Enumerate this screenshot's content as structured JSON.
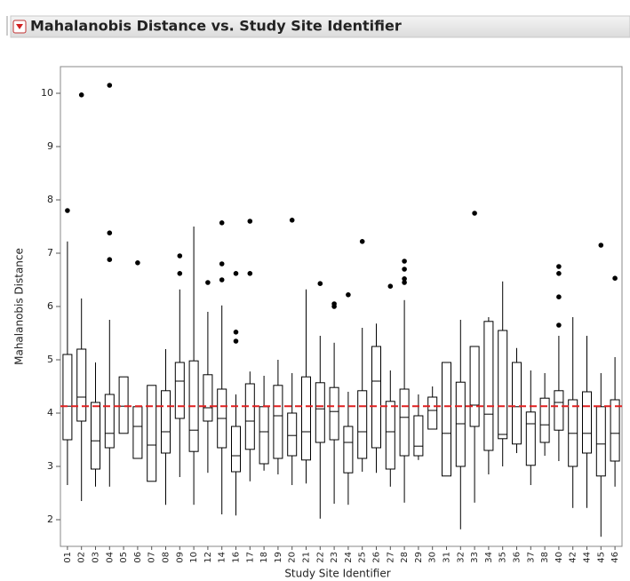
{
  "chart_data": {
    "type": "boxplot",
    "title": "Mahalanobis Distance vs. Study Site Identifier",
    "x_label": "Study Site Identifier",
    "y_label": "Mahalanobis Distance",
    "categories": [
      "01",
      "02",
      "03",
      "04",
      "05",
      "06",
      "07",
      "08",
      "09",
      "10",
      "12",
      "14",
      "16",
      "17",
      "18",
      "19",
      "20",
      "21",
      "22",
      "23",
      "24",
      "25",
      "26",
      "27",
      "28",
      "29",
      "30",
      "31",
      "32",
      "33",
      "34",
      "35",
      "36",
      "37",
      "38",
      "40",
      "42",
      "44",
      "45",
      "46"
    ],
    "min": [
      2.65,
      2.35,
      2.62,
      2.62,
      3.62,
      3.15,
      2.72,
      2.28,
      2.8,
      2.28,
      2.88,
      2.1,
      2.08,
      2.72,
      2.92,
      2.85,
      2.65,
      2.68,
      2.02,
      2.3,
      2.28,
      2.9,
      2.88,
      2.62,
      2.32,
      3.12,
      3.7,
      2.82,
      1.82,
      2.32,
      2.85,
      3.0,
      3.25,
      2.65,
      3.2,
      3.1,
      2.22,
      2.22,
      1.68,
      2.62
    ],
    "q1": [
      3.5,
      3.85,
      2.95,
      3.35,
      3.62,
      3.15,
      2.72,
      3.25,
      3.9,
      3.28,
      3.85,
      3.35,
      2.9,
      3.32,
      3.05,
      3.15,
      3.2,
      3.12,
      3.45,
      3.5,
      2.88,
      3.15,
      3.35,
      2.95,
      3.2,
      3.2,
      3.7,
      2.82,
      3.0,
      3.75,
      3.3,
      3.52,
      3.42,
      3.02,
      3.45,
      3.68,
      3.0,
      3.25,
      2.82,
      3.1
    ],
    "median": [
      4.13,
      4.3,
      3.48,
      3.62,
      4.13,
      3.75,
      3.4,
      3.65,
      4.6,
      3.68,
      4.1,
      3.9,
      3.2,
      3.85,
      3.65,
      3.95,
      3.58,
      3.65,
      4.08,
      4.03,
      3.45,
      3.65,
      4.6,
      3.65,
      3.92,
      3.38,
      4.05,
      3.62,
      3.8,
      4.15,
      3.98,
      3.6,
      4.12,
      3.8,
      3.78,
      4.2,
      3.62,
      3.62,
      3.42,
      3.62
    ],
    "q3": [
      5.1,
      5.2,
      4.2,
      4.35,
      4.68,
      4.12,
      4.52,
      4.42,
      4.95,
      4.98,
      4.72,
      4.45,
      3.75,
      4.55,
      4.12,
      4.52,
      4.0,
      4.68,
      4.57,
      4.48,
      3.75,
      4.42,
      5.25,
      4.22,
      4.45,
      3.95,
      4.3,
      4.95,
      4.58,
      5.25,
      5.72,
      5.55,
      4.95,
      4.02,
      4.28,
      4.42,
      4.25,
      4.4,
      4.12,
      4.25
    ],
    "max": [
      7.22,
      6.15,
      4.95,
      5.75,
      4.68,
      4.12,
      4.52,
      5.2,
      6.32,
      7.5,
      5.9,
      6.02,
      4.35,
      4.78,
      4.7,
      5.0,
      4.75,
      6.32,
      5.45,
      5.32,
      4.4,
      5.6,
      5.68,
      4.8,
      6.12,
      4.35,
      4.5,
      4.95,
      5.75,
      5.25,
      5.8,
      6.47,
      5.22,
      4.8,
      4.75,
      5.45,
      5.8,
      5.45,
      4.75,
      5.05
    ],
    "outliers": [
      [
        7.8
      ],
      [
        9.97
      ],
      [],
      [
        6.88,
        7.38,
        10.15
      ],
      [],
      [
        6.82
      ],
      [],
      [],
      [
        6.62,
        6.95
      ],
      [],
      [
        6.45
      ],
      [
        6.5,
        6.8,
        7.57
      ],
      [
        5.35,
        5.52,
        6.62
      ],
      [
        6.62,
        7.6
      ],
      [],
      [],
      [
        7.62
      ],
      [],
      [
        6.43
      ],
      [
        6.0,
        6.05
      ],
      [
        6.22
      ],
      [
        7.22
      ],
      [],
      [
        6.38
      ],
      [
        6.45,
        6.52,
        6.7,
        6.85
      ],
      [],
      [],
      [],
      [],
      [
        7.75
      ],
      [],
      [],
      [],
      [],
      [],
      [
        5.65,
        6.18,
        6.62,
        6.75
      ],
      [],
      [],
      [
        7.15
      ],
      [
        6.53
      ]
    ],
    "reference_line": {
      "value": 4.13,
      "color": "#e02020"
    },
    "ylim": [
      1.5,
      10.5
    ],
    "yticks": [
      2,
      3,
      4,
      5,
      6,
      7,
      8,
      9,
      10
    ]
  }
}
